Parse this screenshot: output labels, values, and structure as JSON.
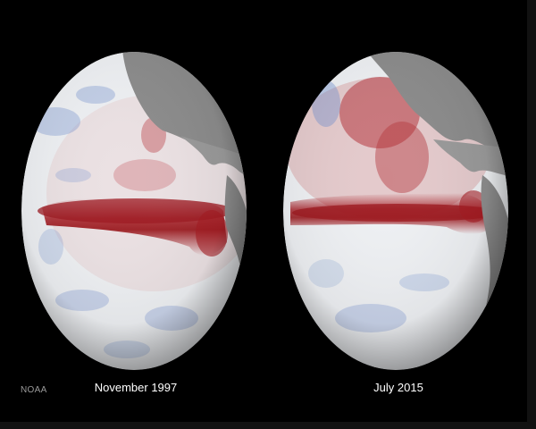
{
  "credit": "NOAA",
  "globes": [
    {
      "caption": "November 1997"
    },
    {
      "caption": "July 2015"
    }
  ],
  "colors": {
    "background": "#000000",
    "ocean_base": "#eef0f3",
    "warm_anomaly": "#a51b22",
    "cool_anomaly": "#6f8fcf",
    "land": "#8c8c8c"
  }
}
